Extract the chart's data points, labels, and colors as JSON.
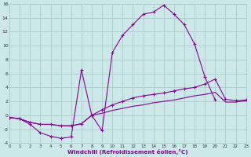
{
  "xlabel": "Windchill (Refroidissement éolien,°C)",
  "bg_color": "#cce8e8",
  "grid_color": "#aacccc",
  "line_color": "#880099",
  "xlim": [
    0,
    23
  ],
  "ylim": [
    -4,
    16
  ],
  "xticks": [
    0,
    1,
    2,
    3,
    4,
    5,
    6,
    7,
    8,
    9,
    10,
    11,
    12,
    13,
    14,
    15,
    16,
    17,
    18,
    19,
    20,
    21,
    22,
    23
  ],
  "yticks": [
    -4,
    -2,
    0,
    2,
    4,
    6,
    8,
    10,
    12,
    14,
    16
  ],
  "hours": [
    0,
    1,
    2,
    3,
    4,
    5,
    6,
    7,
    8,
    9,
    10,
    11,
    12,
    13,
    14,
    15,
    16,
    17,
    18,
    19,
    20,
    21,
    22,
    23
  ],
  "curve_main": [
    -0.3,
    -0.5,
    -1.3,
    -2.5,
    -3.0,
    -3.3,
    -3.1,
    6.5,
    0.0,
    -2.2,
    9.0,
    11.5,
    13.0,
    14.5,
    14.8,
    15.8,
    14.5,
    13.0,
    10.2,
    5.5,
    2.2,
    null,
    null,
    null
  ],
  "curve_upper": [
    -0.3,
    -0.5,
    -1.0,
    -1.3,
    -1.3,
    -1.5,
    -1.5,
    -1.2,
    0.0,
    0.8,
    1.5,
    2.0,
    2.5,
    2.8,
    3.0,
    3.2,
    3.5,
    3.8,
    4.0,
    4.5,
    5.2,
    2.3,
    2.1,
    2.2
  ],
  "curve_lower": [
    -0.3,
    -0.5,
    -1.0,
    -1.3,
    -1.3,
    -1.5,
    -1.5,
    -1.2,
    0.0,
    0.3,
    0.7,
    1.0,
    1.3,
    1.5,
    1.8,
    2.0,
    2.2,
    2.5,
    2.8,
    3.0,
    3.3,
    1.9,
    1.9,
    2.1
  ]
}
